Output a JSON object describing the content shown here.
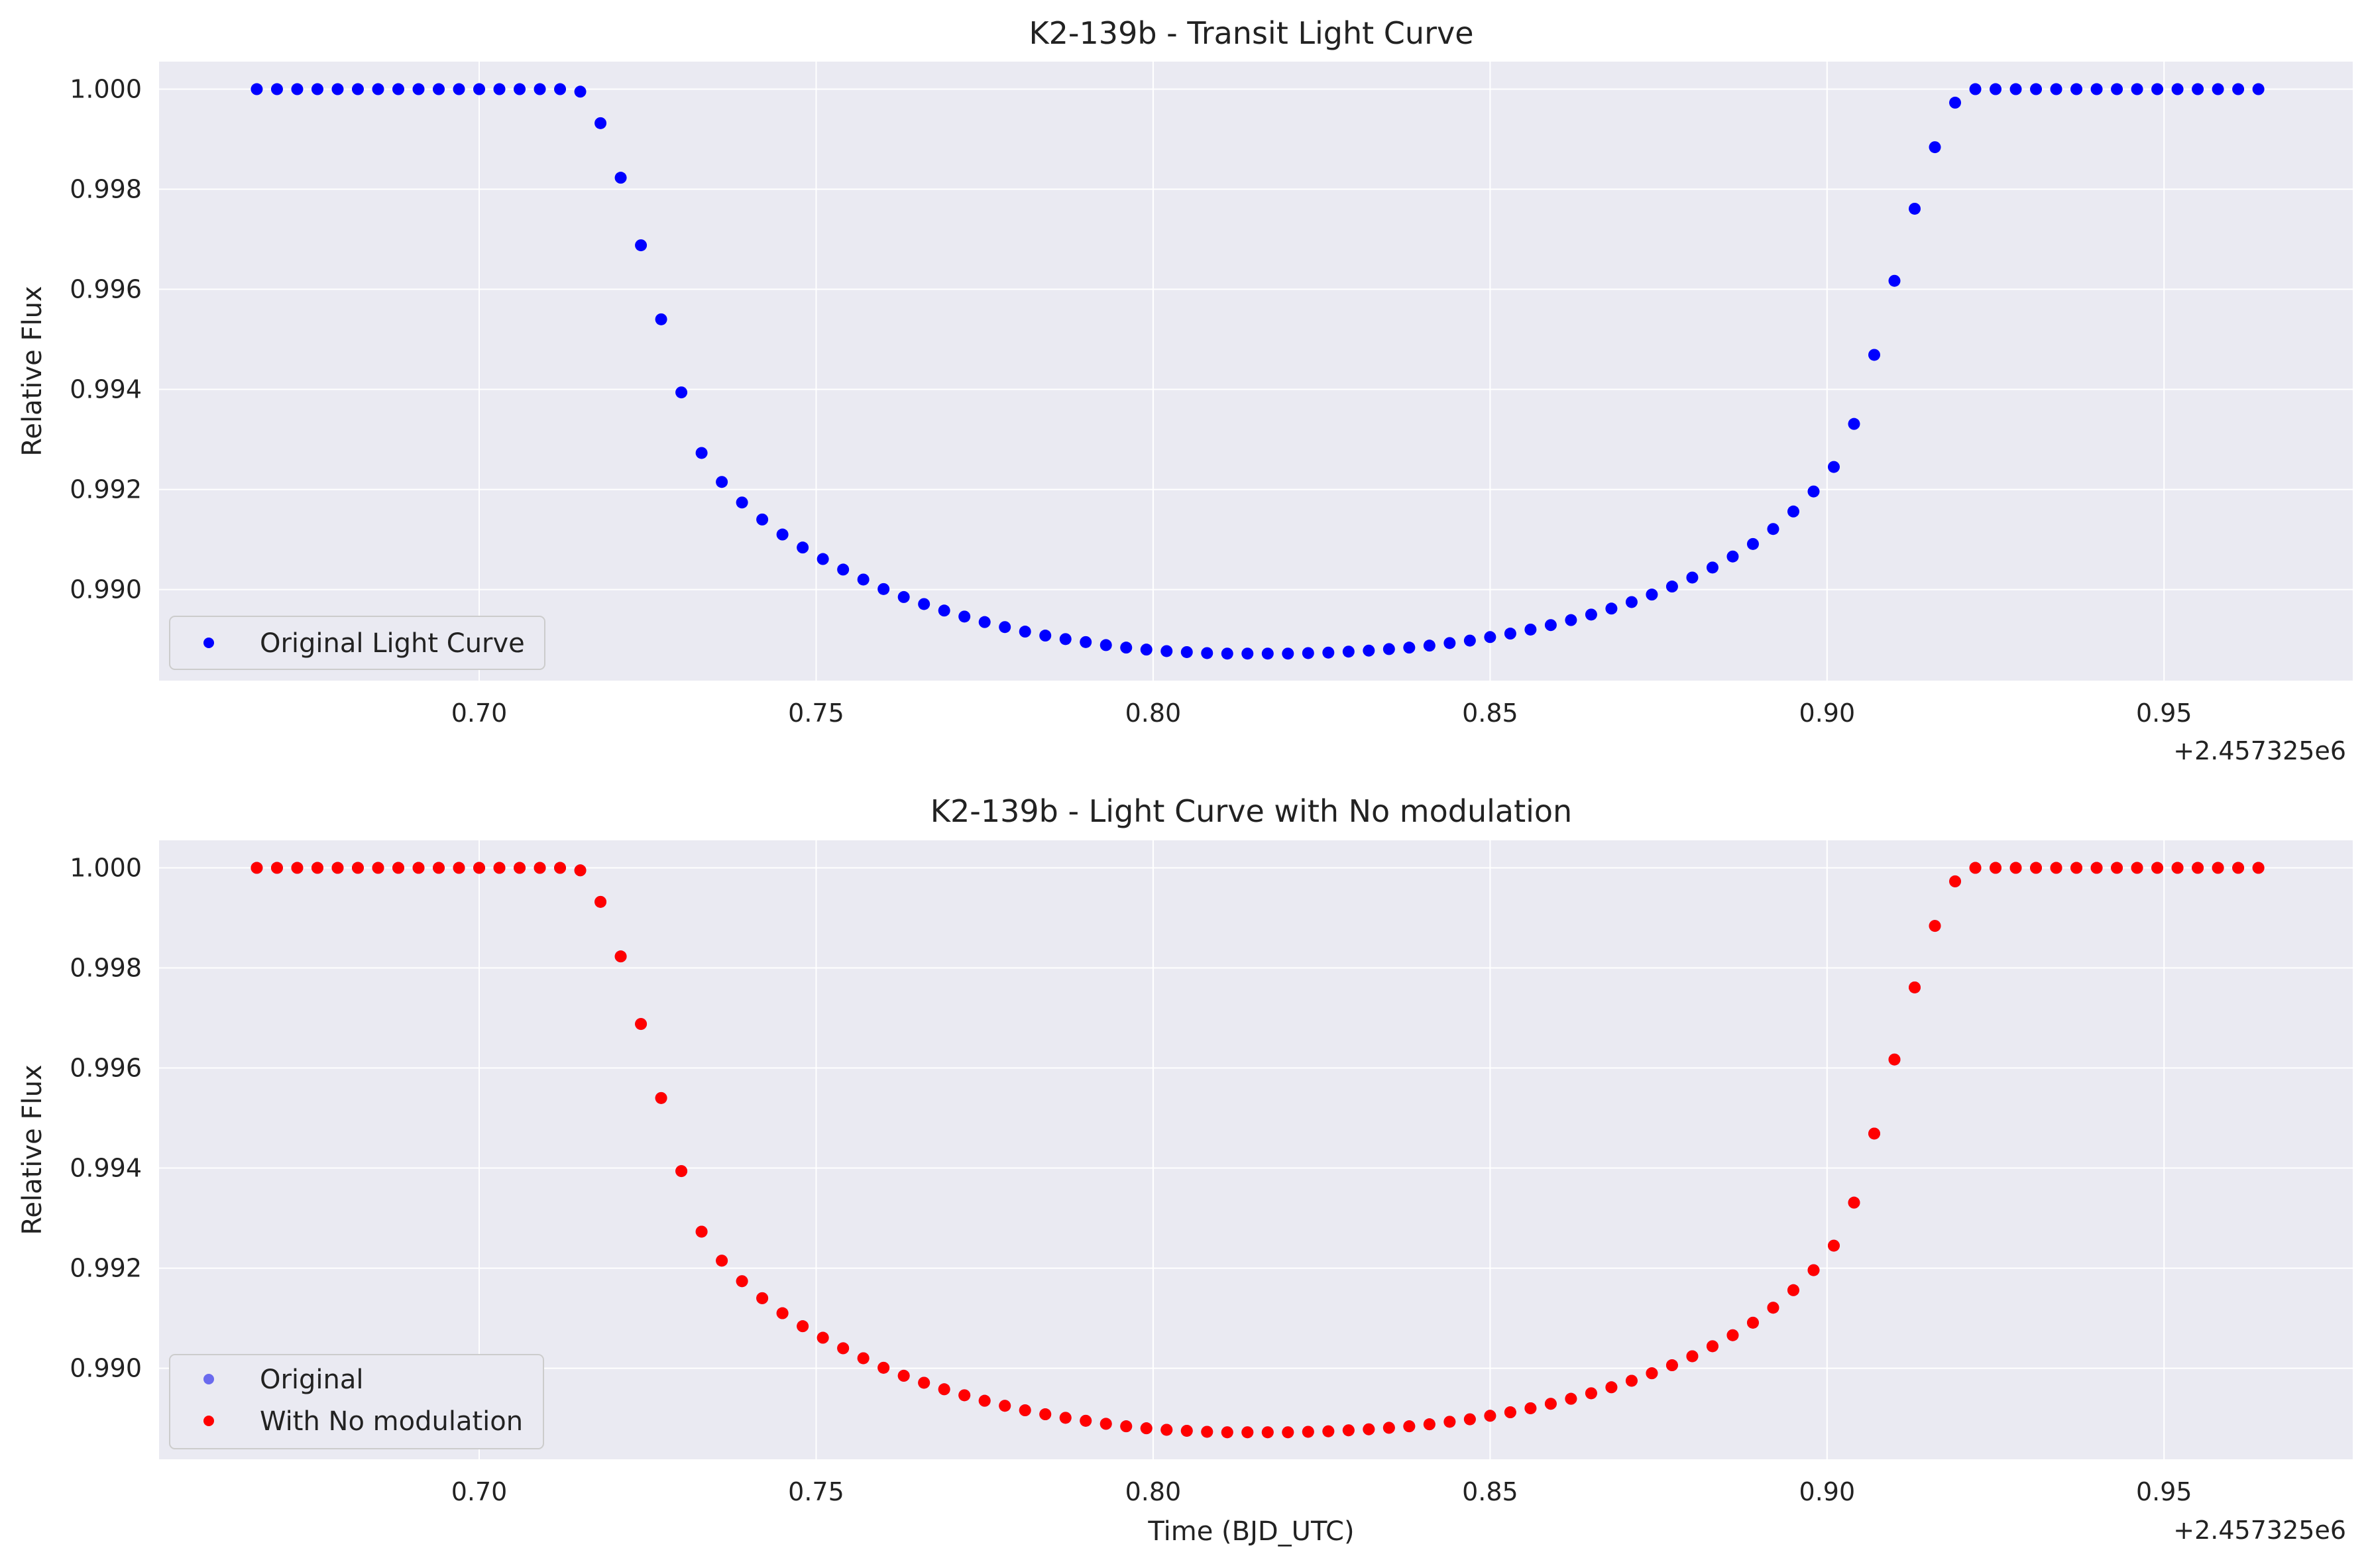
{
  "chart_data": [
    {
      "type": "scatter",
      "title": "K2-139b - Transit Light Curve",
      "xlabel": "",
      "ylabel": "Relative Flux",
      "x_offset_label": "+2.457325e6",
      "x_tick_labels": [
        "0.70",
        "0.75",
        "0.80",
        "0.85",
        "0.90",
        "0.95"
      ],
      "y_tick_labels": [
        "0.990",
        "0.992",
        "0.994",
        "0.996",
        "0.998",
        "1.000"
      ],
      "xlim": [
        0.6525,
        0.978
      ],
      "ylim": [
        0.98818,
        1.00055
      ],
      "grid": true,
      "legend_position": "lower-left",
      "x": [
        0.667,
        0.67,
        0.673,
        0.676,
        0.679,
        0.682,
        0.685,
        0.688,
        0.691,
        0.694,
        0.697,
        0.7,
        0.703,
        0.706,
        0.709,
        0.712,
        0.715,
        0.718,
        0.721,
        0.724,
        0.727,
        0.73,
        0.733,
        0.736,
        0.739,
        0.742,
        0.745,
        0.748,
        0.751,
        0.754,
        0.757,
        0.76,
        0.763,
        0.766,
        0.769,
        0.772,
        0.775,
        0.778,
        0.781,
        0.784,
        0.787,
        0.79,
        0.793,
        0.796,
        0.799,
        0.802,
        0.805,
        0.808,
        0.811,
        0.814,
        0.817,
        0.82,
        0.823,
        0.826,
        0.829,
        0.832,
        0.835,
        0.838,
        0.841,
        0.844,
        0.847,
        0.85,
        0.853,
        0.856,
        0.859,
        0.862,
        0.865,
        0.868,
        0.871,
        0.874,
        0.877,
        0.88,
        0.883,
        0.886,
        0.889,
        0.892,
        0.895,
        0.898,
        0.901,
        0.904,
        0.907,
        0.91,
        0.913,
        0.916,
        0.919,
        0.922,
        0.925,
        0.928,
        0.931,
        0.934,
        0.937,
        0.94,
        0.943,
        0.946,
        0.949,
        0.952,
        0.955,
        0.958,
        0.961,
        0.964
      ],
      "series": [
        {
          "name": "Original Light Curve",
          "color": "#0000ff",
          "values": [
            1.0,
            1.0,
            1.0,
            1.0,
            1.0,
            1.0,
            1.0,
            1.0,
            1.0,
            1.0,
            1.0,
            1.0,
            1.0,
            1.0,
            1.0,
            1.0,
            0.99995,
            0.99932,
            0.99823,
            0.99688,
            0.9954,
            0.99394,
            0.99273,
            0.99215,
            0.99174,
            0.9914,
            0.9911,
            0.99084,
            0.99061,
            0.9904,
            0.9902,
            0.99001,
            0.98985,
            0.98971,
            0.98958,
            0.98946,
            0.98935,
            0.98925,
            0.98916,
            0.98908,
            0.98901,
            0.98895,
            0.98889,
            0.98884,
            0.9888,
            0.98877,
            0.98875,
            0.98873,
            0.98872,
            0.98872,
            0.98872,
            0.98872,
            0.98873,
            0.98874,
            0.98876,
            0.98878,
            0.98881,
            0.98884,
            0.98888,
            0.98893,
            0.98898,
            0.98905,
            0.98912,
            0.9892,
            0.98929,
            0.98939,
            0.9895,
            0.98962,
            0.98975,
            0.9899,
            0.99006,
            0.99024,
            0.99044,
            0.99066,
            0.99091,
            0.99121,
            0.99156,
            0.99196,
            0.99245,
            0.99331,
            0.99469,
            0.99617,
            0.99761,
            0.99884,
            0.99973,
            1.0,
            1.0,
            1.0,
            1.0,
            1.0,
            1.0,
            1.0,
            1.0,
            1.0,
            1.0,
            1.0,
            1.0,
            1.0,
            1.0,
            1.0
          ]
        }
      ]
    },
    {
      "type": "scatter",
      "title": "K2-139b - Light Curve with No modulation",
      "xlabel": "Time (BJD_UTC)",
      "ylabel": "Relative Flux",
      "x_offset_label": "+2.457325e6",
      "x_tick_labels": [
        "0.70",
        "0.75",
        "0.80",
        "0.85",
        "0.90",
        "0.95"
      ],
      "y_tick_labels": [
        "0.990",
        "0.992",
        "0.994",
        "0.996",
        "0.998",
        "1.000"
      ],
      "xlim": [
        0.6525,
        0.978
      ],
      "ylim": [
        0.98818,
        1.00055
      ],
      "grid": true,
      "legend_position": "lower-left",
      "x": [
        0.667,
        0.67,
        0.673,
        0.676,
        0.679,
        0.682,
        0.685,
        0.688,
        0.691,
        0.694,
        0.697,
        0.7,
        0.703,
        0.706,
        0.709,
        0.712,
        0.715,
        0.718,
        0.721,
        0.724,
        0.727,
        0.73,
        0.733,
        0.736,
        0.739,
        0.742,
        0.745,
        0.748,
        0.751,
        0.754,
        0.757,
        0.76,
        0.763,
        0.766,
        0.769,
        0.772,
        0.775,
        0.778,
        0.781,
        0.784,
        0.787,
        0.79,
        0.793,
        0.796,
        0.799,
        0.802,
        0.805,
        0.808,
        0.811,
        0.814,
        0.817,
        0.82,
        0.823,
        0.826,
        0.829,
        0.832,
        0.835,
        0.838,
        0.841,
        0.844,
        0.847,
        0.85,
        0.853,
        0.856,
        0.859,
        0.862,
        0.865,
        0.868,
        0.871,
        0.874,
        0.877,
        0.88,
        0.883,
        0.886,
        0.889,
        0.892,
        0.895,
        0.898,
        0.901,
        0.904,
        0.907,
        0.91,
        0.913,
        0.916,
        0.919,
        0.922,
        0.925,
        0.928,
        0.931,
        0.934,
        0.937,
        0.94,
        0.943,
        0.946,
        0.949,
        0.952,
        0.955,
        0.958,
        0.961,
        0.964
      ],
      "series": [
        {
          "name": "Original",
          "color": "#6a6aee",
          "values": [
            1.0,
            1.0,
            1.0,
            1.0,
            1.0,
            1.0,
            1.0,
            1.0,
            1.0,
            1.0,
            1.0,
            1.0,
            1.0,
            1.0,
            1.0,
            1.0,
            0.99995,
            0.99932,
            0.99823,
            0.99688,
            0.9954,
            0.99394,
            0.99273,
            0.99215,
            0.99174,
            0.9914,
            0.9911,
            0.99084,
            0.99061,
            0.9904,
            0.9902,
            0.99001,
            0.98985,
            0.98971,
            0.98958,
            0.98946,
            0.98935,
            0.98925,
            0.98916,
            0.98908,
            0.98901,
            0.98895,
            0.98889,
            0.98884,
            0.9888,
            0.98877,
            0.98875,
            0.98873,
            0.98872,
            0.98872,
            0.98872,
            0.98872,
            0.98873,
            0.98874,
            0.98876,
            0.98878,
            0.98881,
            0.98884,
            0.98888,
            0.98893,
            0.98898,
            0.98905,
            0.98912,
            0.9892,
            0.98929,
            0.98939,
            0.9895,
            0.98962,
            0.98975,
            0.9899,
            0.99006,
            0.99024,
            0.99044,
            0.99066,
            0.99091,
            0.99121,
            0.99156,
            0.99196,
            0.99245,
            0.99331,
            0.99469,
            0.99617,
            0.99761,
            0.99884,
            0.99973,
            1.0,
            1.0,
            1.0,
            1.0,
            1.0,
            1.0,
            1.0,
            1.0,
            1.0,
            1.0,
            1.0,
            1.0,
            1.0,
            1.0,
            1.0
          ]
        },
        {
          "name": "With No modulation",
          "color": "#ff0000",
          "values": [
            1.0,
            1.0,
            1.0,
            1.0,
            1.0,
            1.0,
            1.0,
            1.0,
            1.0,
            1.0,
            1.0,
            1.0,
            1.0,
            1.0,
            1.0,
            1.0,
            0.99995,
            0.99932,
            0.99823,
            0.99688,
            0.9954,
            0.99394,
            0.99273,
            0.99215,
            0.99174,
            0.9914,
            0.9911,
            0.99084,
            0.99061,
            0.9904,
            0.9902,
            0.99001,
            0.98985,
            0.98971,
            0.98958,
            0.98946,
            0.98935,
            0.98925,
            0.98916,
            0.98908,
            0.98901,
            0.98895,
            0.98889,
            0.98884,
            0.9888,
            0.98877,
            0.98875,
            0.98873,
            0.98872,
            0.98872,
            0.98872,
            0.98872,
            0.98873,
            0.98874,
            0.98876,
            0.98878,
            0.98881,
            0.98884,
            0.98888,
            0.98893,
            0.98898,
            0.98905,
            0.98912,
            0.9892,
            0.98929,
            0.98939,
            0.9895,
            0.98962,
            0.98975,
            0.9899,
            0.99006,
            0.99024,
            0.99044,
            0.99066,
            0.99091,
            0.99121,
            0.99156,
            0.99196,
            0.99245,
            0.99331,
            0.99469,
            0.99617,
            0.99761,
            0.99884,
            0.99973,
            1.0,
            1.0,
            1.0,
            1.0,
            1.0,
            1.0,
            1.0,
            1.0,
            1.0,
            1.0,
            1.0,
            1.0,
            1.0,
            1.0,
            1.0
          ]
        }
      ]
    }
  ]
}
